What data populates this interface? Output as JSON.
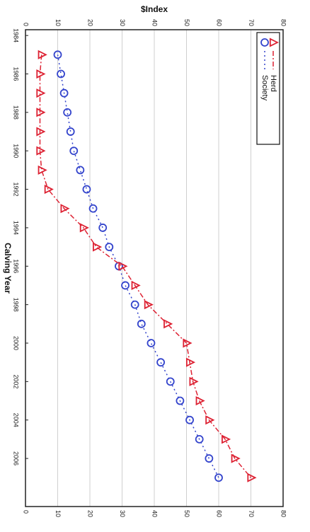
{
  "chart_data": {
    "type": "line",
    "orientation": "rotated-90-clockwise",
    "title": "",
    "xlabel": "Calving Year",
    "ylabel": "$Index",
    "x_ticks": [
      "1984",
      "1986",
      "1988",
      "1990",
      "1992",
      "1994",
      "1996",
      "1998",
      "2000",
      "2002",
      "2004",
      "2006"
    ],
    "y_ticks": [
      "0",
      "10",
      "20",
      "30",
      "40",
      "50",
      "60",
      "70",
      "80"
    ],
    "xlim": [
      1983.7,
      2008.5
    ],
    "ylim": [
      0,
      80
    ],
    "grid": true,
    "legend_position": "top-right",
    "x": [
      1985,
      1986,
      1987,
      1988,
      1989,
      1990,
      1991,
      1992,
      1993,
      1994,
      1995,
      1996,
      1997,
      1998,
      1999,
      2000,
      2001,
      2002,
      2003,
      2004,
      2005,
      2006,
      2007
    ],
    "series": [
      {
        "name": "Society",
        "color": "#3344cc",
        "marker": "circle",
        "linestyle": "dotted",
        "values": [
          10,
          11,
          12,
          13,
          14,
          15,
          17,
          19,
          21,
          24,
          26,
          29,
          31,
          34,
          36,
          39,
          42,
          45,
          48,
          51,
          54,
          57,
          60
        ]
      },
      {
        "name": "Herd",
        "color": "#dd2233",
        "marker": "triangle",
        "linestyle": "dashdot",
        "values": [
          5,
          4.5,
          4.5,
          4.5,
          4.5,
          4.5,
          5,
          7,
          12,
          18,
          22,
          30,
          34,
          38,
          44,
          50,
          51,
          52,
          54,
          57,
          62,
          65,
          70
        ]
      }
    ]
  }
}
